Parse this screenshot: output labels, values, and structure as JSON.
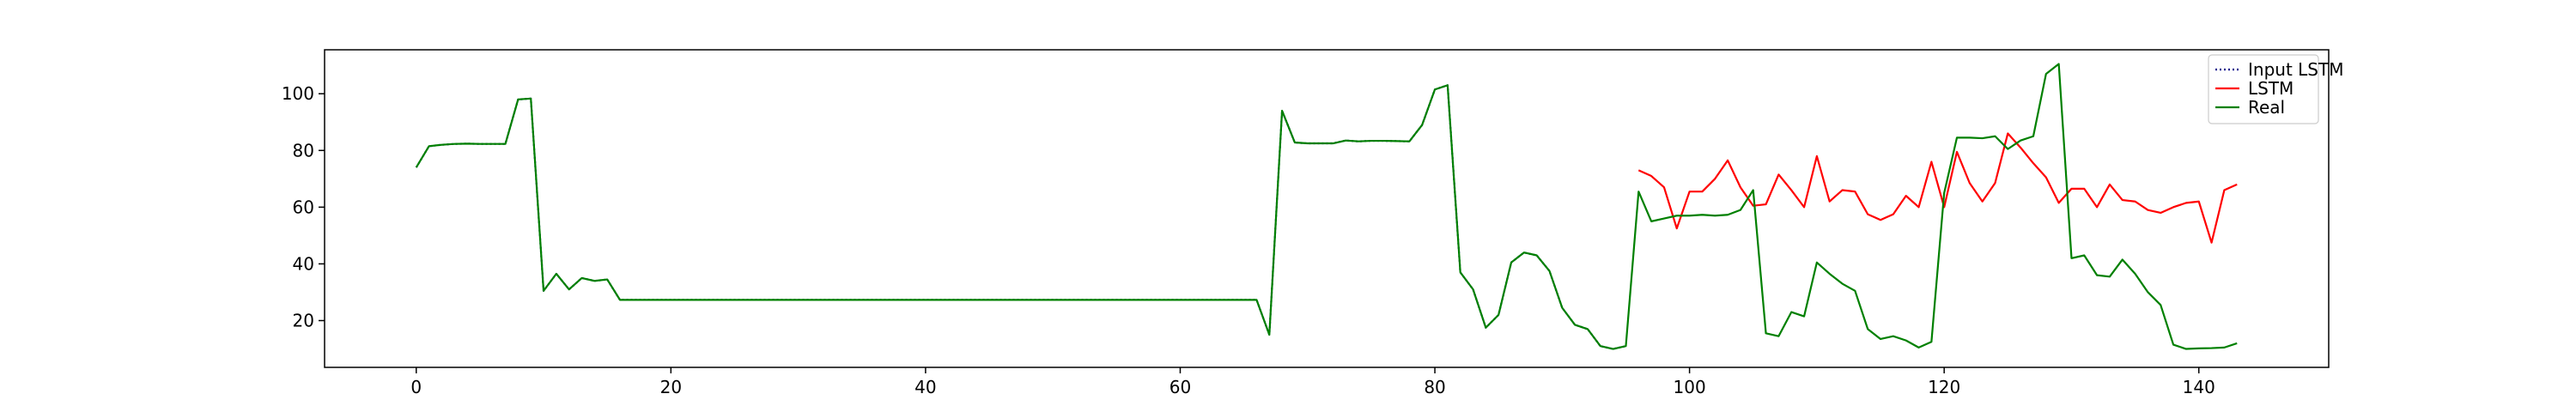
{
  "chart_data": {
    "type": "line",
    "title": "",
    "xlabel": "",
    "ylabel": "",
    "xlim": [
      -7.2,
      150.2
    ],
    "ylim": [
      3.5,
      115.5
    ],
    "x_ticks": [
      0,
      20,
      40,
      60,
      80,
      100,
      120,
      140
    ],
    "y_ticks": [
      20,
      40,
      60,
      80,
      100
    ],
    "grid": false,
    "legend_position": "top-right",
    "series": [
      {
        "name": "Input LSTM",
        "color": "#00008b",
        "dash": "dotted",
        "x": [
          0,
          1,
          2,
          3,
          4,
          5,
          6,
          7,
          8,
          9,
          10,
          11,
          12,
          13,
          14,
          15,
          16,
          17,
          18,
          19,
          20,
          21,
          22,
          23,
          24,
          25,
          26,
          27,
          28,
          29,
          30,
          31,
          32,
          33,
          34,
          35,
          36,
          37,
          38,
          39,
          40,
          41,
          42,
          43,
          44,
          45,
          46,
          47,
          48,
          49,
          50,
          51,
          52,
          53,
          54,
          55,
          56,
          57,
          58,
          59,
          60,
          61,
          62,
          63,
          64,
          65,
          66,
          67,
          68,
          69,
          70,
          71,
          72,
          73,
          74,
          75,
          76,
          77,
          78,
          79,
          80,
          81,
          82,
          83,
          84,
          85,
          86,
          87,
          88,
          89,
          90,
          91,
          92,
          93,
          94,
          95
        ],
        "y": [
          74,
          81.5,
          82,
          82.3,
          82.4,
          82.3,
          82.3,
          82.3,
          98,
          98.3,
          30.5,
          36.5,
          31,
          35,
          34,
          34.5,
          27.3,
          27.3,
          27.3,
          27.3,
          27.3,
          27.3,
          27.3,
          27.3,
          27.3,
          27.3,
          27.3,
          27.3,
          27.3,
          27.3,
          27.3,
          27.3,
          27.3,
          27.3,
          27.3,
          27.3,
          27.3,
          27.3,
          27.3,
          27.3,
          27.3,
          27.3,
          27.3,
          27.3,
          27.3,
          27.3,
          27.3,
          27.3,
          27.3,
          27.3,
          27.3,
          27.3,
          27.3,
          27.3,
          27.3,
          27.3,
          27.3,
          27.3,
          27.3,
          27.3,
          27.3,
          27.3,
          27.3,
          27.3,
          27.3,
          27.3,
          27.3,
          15,
          94,
          82.8,
          82.5,
          82.5,
          82.5,
          83.5,
          83.2,
          83.4,
          83.4,
          83.3,
          83.2,
          89,
          101.5,
          103,
          37,
          31,
          17.5,
          22,
          40.5,
          44,
          43,
          37.5,
          24.5,
          18.5,
          17,
          11,
          10,
          11
        ]
      },
      {
        "name": "LSTM",
        "color": "#ff0000",
        "dash": "solid",
        "x": [
          96,
          97,
          98,
          99,
          100,
          101,
          102,
          103,
          104,
          105,
          106,
          107,
          108,
          109,
          110,
          111,
          112,
          113,
          114,
          115,
          116,
          117,
          118,
          119,
          120,
          121,
          122,
          123,
          124,
          125,
          126,
          127,
          128,
          129,
          130,
          131,
          132,
          133,
          134,
          135,
          136,
          137,
          138,
          139,
          140,
          141,
          142,
          143
        ],
        "y": [
          73,
          71,
          67,
          52.5,
          65.5,
          65.5,
          70,
          76.5,
          67,
          60.5,
          61,
          71.5,
          66,
          60,
          78,
          62,
          66,
          65.5,
          57.5,
          55.5,
          57.5,
          64,
          60,
          76,
          60,
          79.5,
          68.5,
          62,
          68.5,
          86,
          81,
          75.5,
          70.5,
          61.5,
          66.5,
          66.5,
          60,
          68,
          62.5,
          62,
          59,
          58,
          60,
          61.5,
          62,
          47.5,
          66,
          68
        ]
      },
      {
        "name": "Real",
        "color": "#008000",
        "dash": "solid",
        "x": [
          0,
          1,
          2,
          3,
          4,
          5,
          6,
          7,
          8,
          9,
          10,
          11,
          12,
          13,
          14,
          15,
          16,
          17,
          18,
          19,
          20,
          21,
          22,
          23,
          24,
          25,
          26,
          27,
          28,
          29,
          30,
          31,
          32,
          33,
          34,
          35,
          36,
          37,
          38,
          39,
          40,
          41,
          42,
          43,
          44,
          45,
          46,
          47,
          48,
          49,
          50,
          51,
          52,
          53,
          54,
          55,
          56,
          57,
          58,
          59,
          60,
          61,
          62,
          63,
          64,
          65,
          66,
          67,
          68,
          69,
          70,
          71,
          72,
          73,
          74,
          75,
          76,
          77,
          78,
          79,
          80,
          81,
          82,
          83,
          84,
          85,
          86,
          87,
          88,
          89,
          90,
          91,
          92,
          93,
          94,
          95,
          96,
          97,
          98,
          99,
          100,
          101,
          102,
          103,
          104,
          105,
          106,
          107,
          108,
          109,
          110,
          111,
          112,
          113,
          114,
          115,
          116,
          117,
          118,
          119,
          120,
          121,
          122,
          123,
          124,
          125,
          126,
          127,
          128,
          129,
          130,
          131,
          132,
          133,
          134,
          135,
          136,
          137,
          138,
          139,
          140,
          141,
          142,
          143
        ],
        "y": [
          74,
          81.5,
          82,
          82.3,
          82.4,
          82.3,
          82.3,
          82.3,
          98,
          98.3,
          30.5,
          36.5,
          31,
          35,
          34,
          34.5,
          27.3,
          27.3,
          27.3,
          27.3,
          27.3,
          27.3,
          27.3,
          27.3,
          27.3,
          27.3,
          27.3,
          27.3,
          27.3,
          27.3,
          27.3,
          27.3,
          27.3,
          27.3,
          27.3,
          27.3,
          27.3,
          27.3,
          27.3,
          27.3,
          27.3,
          27.3,
          27.3,
          27.3,
          27.3,
          27.3,
          27.3,
          27.3,
          27.3,
          27.3,
          27.3,
          27.3,
          27.3,
          27.3,
          27.3,
          27.3,
          27.3,
          27.3,
          27.3,
          27.3,
          27.3,
          27.3,
          27.3,
          27.3,
          27.3,
          27.3,
          27.3,
          15,
          94,
          82.8,
          82.5,
          82.5,
          82.5,
          83.5,
          83.2,
          83.4,
          83.4,
          83.3,
          83.2,
          89,
          101.5,
          103,
          37,
          31,
          17.5,
          22,
          40.5,
          44,
          43,
          37.5,
          24.5,
          18.5,
          17,
          11,
          10,
          11,
          65.5,
          55,
          56,
          57,
          57,
          57.3,
          57,
          57.3,
          59,
          66,
          15.5,
          14.5,
          23,
          21.5,
          40.5,
          36.5,
          33,
          30.5,
          17,
          13.5,
          14.5,
          13,
          10.5,
          12.5,
          65,
          84.5,
          84.5,
          84.3,
          85,
          80.5,
          83.5,
          85,
          107,
          110.5,
          42,
          43,
          36,
          35.5,
          41.5,
          36.5,
          30,
          25.5,
          11.5,
          10,
          10.2,
          10.3,
          10.5,
          12
        ]
      }
    ]
  }
}
